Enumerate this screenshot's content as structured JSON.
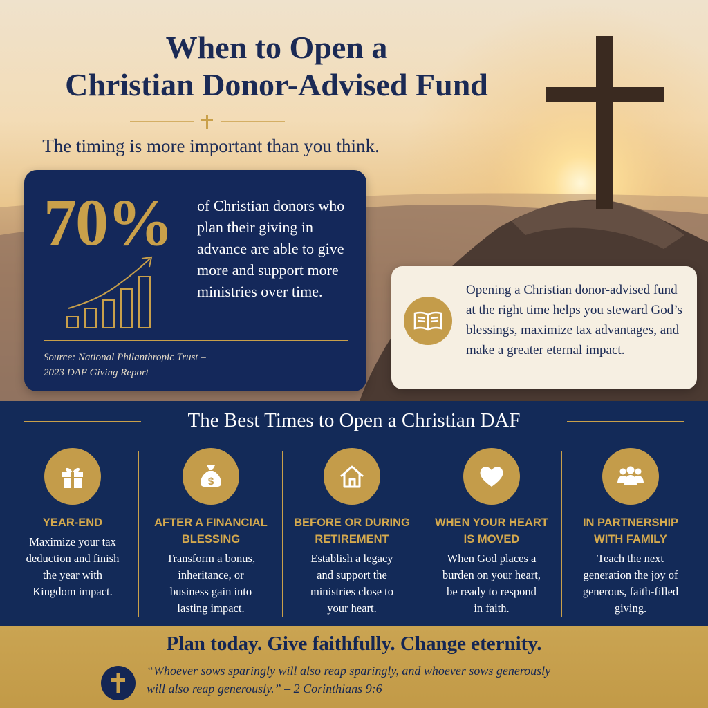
{
  "hero": {
    "title_line1": "When to Open a",
    "title_line2": "Christian Donor-Advised Fund",
    "subtitle": "The timing is more important than you think."
  },
  "stat": {
    "number": "70%",
    "text": "of Christian donors who plan their giving in advance are able to give more and support more ministries over time.",
    "source_line1": "Source: National Philanthropic Trust –",
    "source_line2": "2023 DAF Giving Report",
    "icon": "growth-chart-icon"
  },
  "info": {
    "icon": "open-book-icon",
    "text": "Opening a Christian donor-advised fund at the right time helps you steward God’s blessings, maximize tax advantages, and make a greater eternal impact."
  },
  "times": {
    "title": "The Best Times to Open a Christian DAF",
    "items": [
      {
        "icon": "gift-icon",
        "heading_line1": "YEAR-END",
        "heading_line2": "",
        "text_lines": [
          "Maximize your tax",
          "deduction and finish",
          "the year with",
          "Kingdom impact."
        ]
      },
      {
        "icon": "money-bag-icon",
        "heading_line1": "AFTER A FINANCIAL",
        "heading_line2": "BLESSING",
        "text_lines": [
          "Transform a bonus,",
          "inheritance, or",
          "business gain into",
          "lasting impact."
        ]
      },
      {
        "icon": "house-icon",
        "heading_line1": "BEFORE OR DURING",
        "heading_line2": "RETIREMENT",
        "text_lines": [
          "Establish a legacy",
          "and support the",
          "ministries close to",
          "your heart."
        ]
      },
      {
        "icon": "heart-icon",
        "heading_line1": "WHEN YOUR HEART",
        "heading_line2": "IS MOVED",
        "text_lines": [
          "When God places a",
          "burden on your heart,",
          "be ready to respond",
          "in faith."
        ]
      },
      {
        "icon": "family-icon",
        "heading_line1": "IN PARTNERSHIP",
        "heading_line2": "WITH FAMILY",
        "text_lines": [
          "Teach the next",
          "generation the joy of",
          "generous, faith-filled",
          "giving."
        ]
      }
    ]
  },
  "footer": {
    "headline": "Plan today. Give faithfully. Change eternity.",
    "quote_line1": "“Whoever sows sparingly will also reap sparingly, and whoever sows generously",
    "quote_line2": "will also reap generously.” – 2 Corinthians 9:6",
    "icon": "cross-icon"
  },
  "colors": {
    "navy": "#14285a",
    "gold": "#c9a04a",
    "cream": "#f6efe2"
  }
}
